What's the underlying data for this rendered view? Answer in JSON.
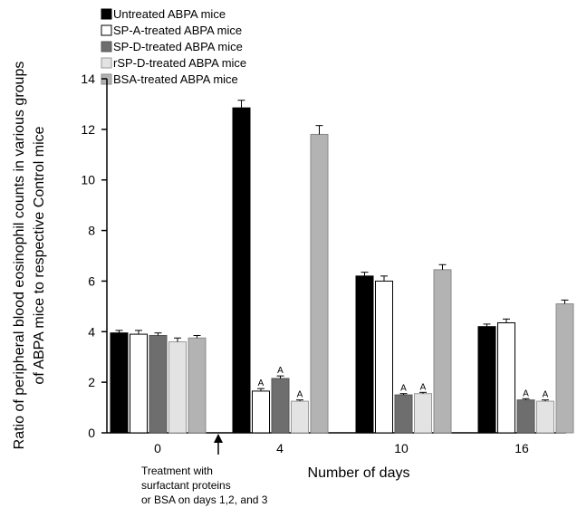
{
  "chart_data": {
    "type": "bar",
    "categories": [
      "0",
      "4",
      "10",
      "16"
    ],
    "series": [
      {
        "name": "Untreated ABPA mice",
        "color": "#000000",
        "stroke": "#000000",
        "values": [
          3.95,
          12.85,
          6.2,
          4.2
        ],
        "errors": [
          0.1,
          0.3,
          0.15,
          0.1
        ],
        "sig": [
          false,
          false,
          false,
          false
        ]
      },
      {
        "name": "SP-A-treated ABPA mice",
        "color": "#ffffff",
        "stroke": "#000000",
        "values": [
          3.9,
          1.65,
          6.0,
          4.35
        ],
        "errors": [
          0.15,
          0.1,
          0.2,
          0.15
        ],
        "sig": [
          false,
          true,
          false,
          false
        ]
      },
      {
        "name": "SP-D-treated ABPA mice",
        "color": "#6e6e6e",
        "stroke": "#555555",
        "values": [
          3.85,
          2.15,
          1.5,
          1.3
        ],
        "errors": [
          0.1,
          0.1,
          0.05,
          0.05
        ],
        "sig": [
          false,
          true,
          true,
          true
        ]
      },
      {
        "name": "rSP-D-treated ABPA mice",
        "color": "#e3e3e3",
        "stroke": "#999999",
        "values": [
          3.6,
          1.25,
          1.55,
          1.25
        ],
        "errors": [
          0.15,
          0.05,
          0.05,
          0.05
        ],
        "sig": [
          false,
          true,
          true,
          true
        ]
      },
      {
        "name": "BSA-treated ABPA mice",
        "color": "#b3b3b3",
        "stroke": "#8a8a8a",
        "values": [
          3.75,
          11.8,
          6.45,
          5.1
        ],
        "errors": [
          0.1,
          0.35,
          0.2,
          0.15
        ],
        "sig": [
          false,
          false,
          false,
          false
        ]
      }
    ],
    "xlabel": "Number of days",
    "ylabel": "Ratio of peripheral blood eosinophil counts in various groups of ABPA mice to respective Control mice",
    "ylabel_lines": [
      "Ratio of peripheral blood eosinophil counts in various groups",
      "of ABPA mice to respective Control mice"
    ],
    "ylim": [
      0,
      14
    ],
    "yticks": [
      0,
      2,
      4,
      6,
      8,
      10,
      12,
      14
    ],
    "significance_marker": "A",
    "legend_position": "top-left",
    "grid": false,
    "annotation": {
      "arrow": "up-arrow",
      "lines": [
        "Treatment with",
        "surfactant proteins",
        "or BSA on days 1,2, and 3"
      ]
    }
  }
}
